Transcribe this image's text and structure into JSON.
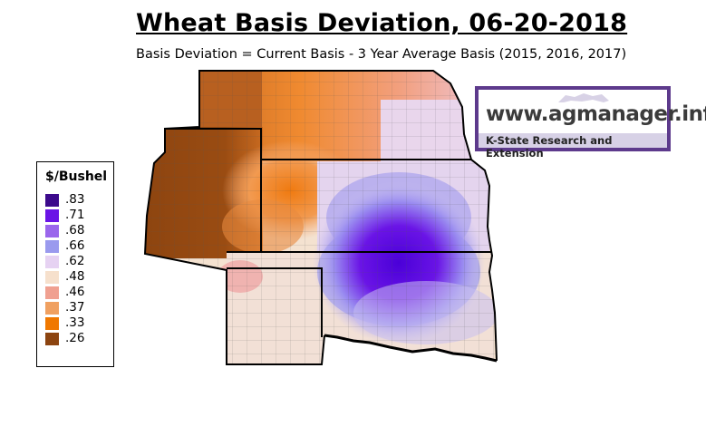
{
  "title": "Wheat Basis Deviation, 06-20-2018",
  "subtitle": "Basis Deviation = Current Basis - 3 Year Average Basis (2015, 2016, 2017)",
  "legend": {
    "title": "$/Bushel",
    "items": [
      {
        "label": ".83",
        "color": "#3c0a8c"
      },
      {
        "label": ".71",
        "color": "#6a14e6"
      },
      {
        "label": ".68",
        "color": "#9a66ec"
      },
      {
        "label": ".66",
        "color": "#9a9aee"
      },
      {
        "label": ".62",
        "color": "#e6d2f2"
      },
      {
        "label": ".48",
        "color": "#f6e0cc"
      },
      {
        "label": ".46",
        "color": "#f0a090"
      },
      {
        "label": ".37",
        "color": "#f0a060"
      },
      {
        "label": ".33",
        "color": "#f07800"
      },
      {
        "label": ".26",
        "color": "#8c4410"
      }
    ]
  },
  "logo": {
    "url_text": "www.agmanager.info",
    "subtitle": "K-State Research and Extension",
    "border_color": "#5d3a8c"
  }
}
